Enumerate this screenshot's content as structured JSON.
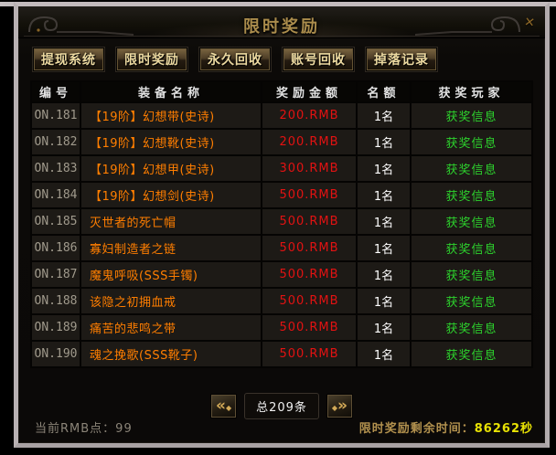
{
  "window": {
    "title": "限时奖励",
    "close_glyph": "✕"
  },
  "tabs": [
    {
      "label": "提现系统"
    },
    {
      "label": "限时奖励"
    },
    {
      "label": "永久回收"
    },
    {
      "label": "账号回收"
    },
    {
      "label": "掉落记录"
    }
  ],
  "table": {
    "headers": [
      "编号",
      "装备名称",
      "奖励金额",
      "名额",
      "获奖玩家"
    ],
    "rows": [
      {
        "id": "ON.181",
        "name": "【19阶】幻想带(史诗)",
        "amount": "200.RMB",
        "quota": "1名",
        "winner": "获奖信息"
      },
      {
        "id": "ON.182",
        "name": "【19阶】幻想靴(史诗)",
        "amount": "200.RMB",
        "quota": "1名",
        "winner": "获奖信息"
      },
      {
        "id": "ON.183",
        "name": "【19阶】幻想甲(史诗)",
        "amount": "300.RMB",
        "quota": "1名",
        "winner": "获奖信息"
      },
      {
        "id": "ON.184",
        "name": "【19阶】幻想剑(史诗)",
        "amount": "500.RMB",
        "quota": "1名",
        "winner": "获奖信息"
      },
      {
        "id": "ON.185",
        "name": "灭世者的死亡帽",
        "amount": "500.RMB",
        "quota": "1名",
        "winner": "获奖信息"
      },
      {
        "id": "ON.186",
        "name": "寡妇制造者之链",
        "amount": "500.RMB",
        "quota": "1名",
        "winner": "获奖信息"
      },
      {
        "id": "ON.187",
        "name": "魔鬼呼吸(SSS手镯)",
        "amount": "500.RMB",
        "quota": "1名",
        "winner": "获奖信息"
      },
      {
        "id": "ON.188",
        "name": "该隐之初拥血戒",
        "amount": "500.RMB",
        "quota": "1名",
        "winner": "获奖信息"
      },
      {
        "id": "ON.189",
        "name": "痛苦的悲鸣之带",
        "amount": "500.RMB",
        "quota": "1名",
        "winner": "获奖信息"
      },
      {
        "id": "ON.190",
        "name": "魂之挽歌(SSS靴子)",
        "amount": "500.RMB",
        "quota": "1名",
        "winner": "获奖信息"
      }
    ]
  },
  "pagination": {
    "prev_glyph": "«",
    "next_glyph": "»",
    "diamond_glyph": "◆",
    "total_label": "总209条"
  },
  "status": {
    "rmb_label": "当前RMB点：",
    "rmb_value": "99",
    "timer_label": "限时奖励剩余时间：",
    "timer_value": "86262秒"
  },
  "colors": {
    "item_name": "#ff7e00",
    "amount": "#e31212",
    "winner": "#2dd22d",
    "title_gold": "#aa8c4c",
    "timer_label": "#b2914e",
    "timer_value": "#e8e204",
    "frame": "#b3acae",
    "row_bg": "#1d1a16"
  }
}
